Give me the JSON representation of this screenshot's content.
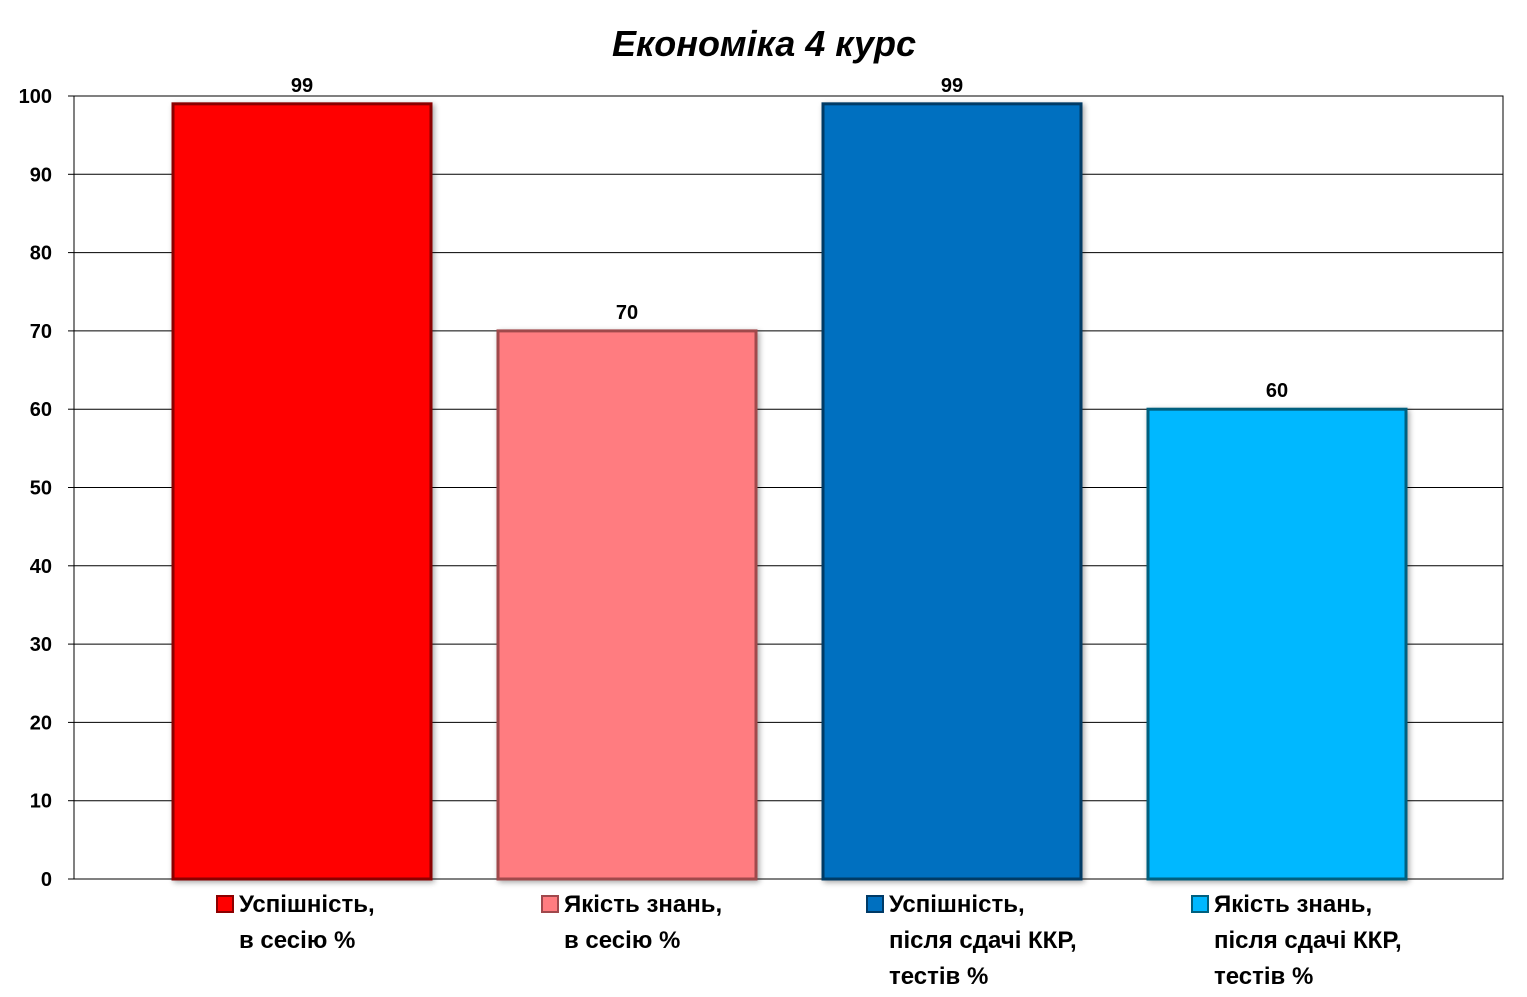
{
  "chart_data": {
    "type": "bar",
    "title": "Економіка 4 курс",
    "xlabel": "",
    "ylabel": "",
    "ylim": [
      0,
      100
    ],
    "yticks": [
      0,
      10,
      20,
      30,
      40,
      50,
      60,
      70,
      80,
      90,
      100
    ],
    "grid": true,
    "legend_position": "bottom",
    "series": [
      {
        "name": "Успішність, в сесію %",
        "legend_lines": [
          "Успішність,",
          "в сесію %"
        ],
        "value": 99,
        "color": "#ff0000",
        "edge": "#8b0000"
      },
      {
        "name": "Якість знань, в сесію %",
        "legend_lines": [
          "Якість знань,",
          "в сесію %"
        ],
        "value": 70,
        "color": "#ff7c80",
        "edge": "#a0484c"
      },
      {
        "name": "Успішність, після сдачі ККР, тестів %",
        "legend_lines": [
          "Успішність,",
          "після сдачі ККР,",
          "тестів %"
        ],
        "value": 99,
        "color": "#0070c0",
        "edge": "#003a66"
      },
      {
        "name": "Якість знань, після сдачі ККР, тестів %",
        "legend_lines": [
          "Якість знань,",
          "після сдачі ККР,",
          "тестів %"
        ],
        "value": 60,
        "color": "#00b8ff",
        "edge": "#00607f"
      }
    ]
  }
}
